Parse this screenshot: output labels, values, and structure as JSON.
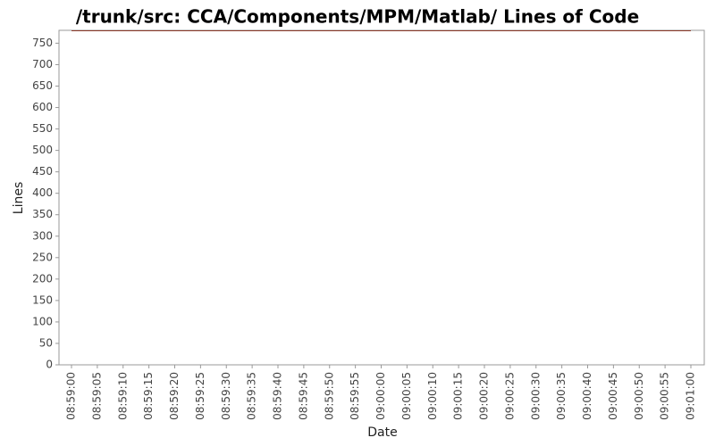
{
  "chart_data": {
    "type": "line",
    "title": "/trunk/src: CCA/Components/MPM/Matlab/ Lines of Code",
    "x_label": "Date",
    "y_label": "Lines",
    "x": [
      "08:59:00",
      "09:01:00"
    ],
    "series": [
      {
        "name": "Lines",
        "color": "#8b3a2a",
        "values": [
          779,
          779
        ]
      }
    ],
    "xlim": [
      "08:59:00",
      "09:01:00"
    ],
    "xticks": [
      "08:59:00",
      "08:59:05",
      "08:59:10",
      "08:59:15",
      "08:59:20",
      "08:59:25",
      "08:59:30",
      "08:59:35",
      "08:59:40",
      "08:59:45",
      "08:59:50",
      "08:59:55",
      "09:00:00",
      "09:00:05",
      "09:00:10",
      "09:00:15",
      "09:00:20",
      "09:00:25",
      "09:00:30",
      "09:00:35",
      "09:00:40",
      "09:00:45",
      "09:00:50",
      "09:00:55",
      "09:01:00"
    ],
    "ylim": [
      0,
      780
    ],
    "yticks": [
      0,
      50,
      100,
      150,
      200,
      250,
      300,
      350,
      400,
      450,
      500,
      550,
      600,
      650,
      700,
      750
    ],
    "grid": false
  }
}
